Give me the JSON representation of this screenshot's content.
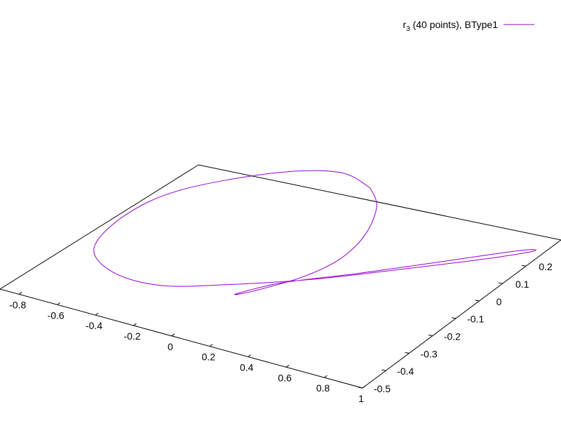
{
  "chart_data": {
    "type": "line",
    "projection": "3d-surface-view",
    "legend": {
      "label_main": "r",
      "label_subscript": "3",
      "label_rest": " (40 points), BType1",
      "placement": "top-right"
    },
    "colors": {
      "series": "#9400d3",
      "axes": "#000000"
    },
    "x_axis": {
      "ticks": [
        -0.8,
        -0.6,
        -0.4,
        -0.2,
        0,
        0.2,
        0.4,
        0.6,
        0.8,
        1
      ],
      "tick_labels": [
        "-0.8",
        "-0.6",
        "-0.4",
        "-0.2",
        "0",
        "0.2",
        "0.4",
        "0.6",
        "0.8",
        "1"
      ],
      "range": [
        -0.9,
        1
      ]
    },
    "y_axis": {
      "ticks": [
        -0.5,
        -0.4,
        -0.3,
        -0.2,
        -0.1,
        0,
        0.1,
        0.2
      ],
      "tick_labels": [
        "-0.5",
        "-0.4",
        "-0.3",
        "-0.2",
        "-0.1",
        "0",
        "0.1",
        "0.2"
      ],
      "range": [
        -0.5,
        0.35
      ]
    },
    "series": [
      {
        "name": "r3 (40 points), BType1",
        "points": [
          [
            0.0,
            0.35
          ],
          [
            -0.2,
            0.38
          ],
          [
            -0.45,
            0.3
          ],
          [
            -0.72,
            0.12
          ],
          [
            -0.8,
            -0.05
          ],
          [
            -0.75,
            -0.22
          ],
          [
            -0.55,
            -0.3
          ],
          [
            -0.3,
            -0.3
          ],
          [
            -0.05,
            -0.22
          ],
          [
            0.25,
            -0.1
          ],
          [
            0.55,
            0.05
          ],
          [
            0.8,
            0.18
          ],
          [
            0.95,
            0.27
          ],
          [
            0.9,
            0.26
          ],
          [
            0.65,
            0.12
          ],
          [
            0.4,
            -0.02
          ],
          [
            0.15,
            -0.15
          ],
          [
            0.03,
            -0.25
          ],
          [
            0.08,
            -0.22
          ],
          [
            0.2,
            -0.1
          ],
          [
            0.25,
            0.02
          ],
          [
            0.22,
            0.15
          ],
          [
            0.12,
            0.28
          ],
          [
            0.0,
            0.35
          ]
        ]
      }
    ]
  }
}
